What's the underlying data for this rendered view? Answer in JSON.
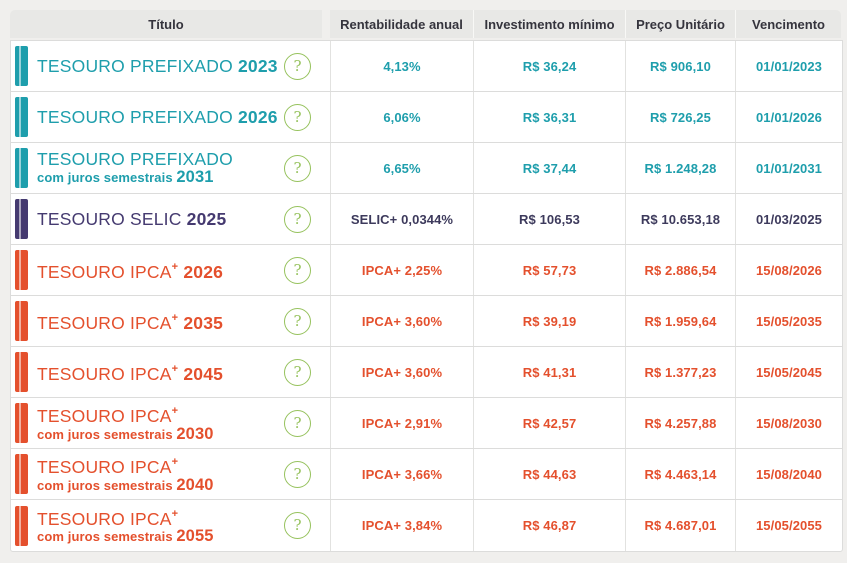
{
  "table": {
    "headers": [
      "Título",
      "Rentabilidade anual",
      "Investimento mínimo",
      "Preço Unitário",
      "Vencimento"
    ],
    "rows": [
      {
        "name": "TESOURO PREFIXADO",
        "sup": false,
        "line2": null,
        "year": "2023",
        "theme": "teal",
        "rate_prefix": "",
        "rate": "4,13%",
        "min_investment": "R$ 36,24",
        "unit_price": "R$ 906,10",
        "maturity": "01/01/2023"
      },
      {
        "name": "TESOURO PREFIXADO",
        "sup": false,
        "line2": null,
        "year": "2026",
        "theme": "teal",
        "rate_prefix": "",
        "rate": "6,06%",
        "min_investment": "R$ 36,31",
        "unit_price": "R$ 726,25",
        "maturity": "01/01/2026"
      },
      {
        "name": "TESOURO PREFIXADO",
        "sup": false,
        "line2": "com juros semestrais",
        "year": "2031",
        "theme": "teal",
        "rate_prefix": "",
        "rate": "6,65%",
        "min_investment": "R$ 37,44",
        "unit_price": "R$ 1.248,28",
        "maturity": "01/01/2031"
      },
      {
        "name": "TESOURO SELIC",
        "sup": false,
        "line2": null,
        "year": "2025",
        "theme": "purple",
        "rate_prefix": "SELIC",
        "rate": " + 0,0344%",
        "min_investment": "R$ 106,53",
        "unit_price": "R$ 10.653,18",
        "maturity": "01/03/2025"
      },
      {
        "name": "TESOURO IPCA",
        "sup": true,
        "line2": null,
        "year": "2026",
        "theme": "orange",
        "rate_prefix": "IPCA",
        "rate": " + 2,25%",
        "min_investment": "R$ 57,73",
        "unit_price": "R$ 2.886,54",
        "maturity": "15/08/2026"
      },
      {
        "name": "TESOURO IPCA",
        "sup": true,
        "line2": null,
        "year": "2035",
        "theme": "orange",
        "rate_prefix": "IPCA",
        "rate": " + 3,60%",
        "min_investment": "R$ 39,19",
        "unit_price": "R$ 1.959,64",
        "maturity": "15/05/2035"
      },
      {
        "name": "TESOURO IPCA",
        "sup": true,
        "line2": null,
        "year": "2045",
        "theme": "orange",
        "rate_prefix": "IPCA",
        "rate": " + 3,60%",
        "min_investment": "R$ 41,31",
        "unit_price": "R$ 1.377,23",
        "maturity": "15/05/2045"
      },
      {
        "name": "TESOURO IPCA",
        "sup": true,
        "line2": "com juros semestrais",
        "year": "2030",
        "theme": "orange",
        "rate_prefix": "IPCA",
        "rate": " + 2,91%",
        "min_investment": "R$ 42,57",
        "unit_price": "R$ 4.257,88",
        "maturity": "15/08/2030"
      },
      {
        "name": "TESOURO IPCA",
        "sup": true,
        "line2": "com juros semestrais",
        "year": "2040",
        "theme": "orange",
        "rate_prefix": "IPCA",
        "rate": " + 3,66%",
        "min_investment": "R$ 44,63",
        "unit_price": "R$ 4.463,14",
        "maturity": "15/08/2040"
      },
      {
        "name": "TESOURO IPCA",
        "sup": true,
        "line2": "com juros semestrais",
        "year": "2055",
        "theme": "orange",
        "rate_prefix": "IPCA",
        "rate": " + 3,84%",
        "min_investment": "R$ 46,87",
        "unit_price": "R$ 4.687,01",
        "maturity": "15/05/2055"
      }
    ]
  },
  "icons": {
    "help": "?",
    "sup_plus": "+"
  },
  "colors": {
    "page_background": "#f0efed",
    "header_background": "#e8e8e6",
    "header_text": "#35343d",
    "border": "#dcdcdb",
    "help_green": "#96c25d",
    "themes": {
      "teal": {
        "bar": "#1e9eac",
        "title": "#1e9eac",
        "value": "#1e9eac"
      },
      "purple": {
        "bar": "#453a70",
        "title": "#453a70",
        "value": "#3d3a5c"
      },
      "orange": {
        "bar": "#e4502d",
        "title": "#e4502d",
        "value": "#e4502d"
      }
    }
  }
}
